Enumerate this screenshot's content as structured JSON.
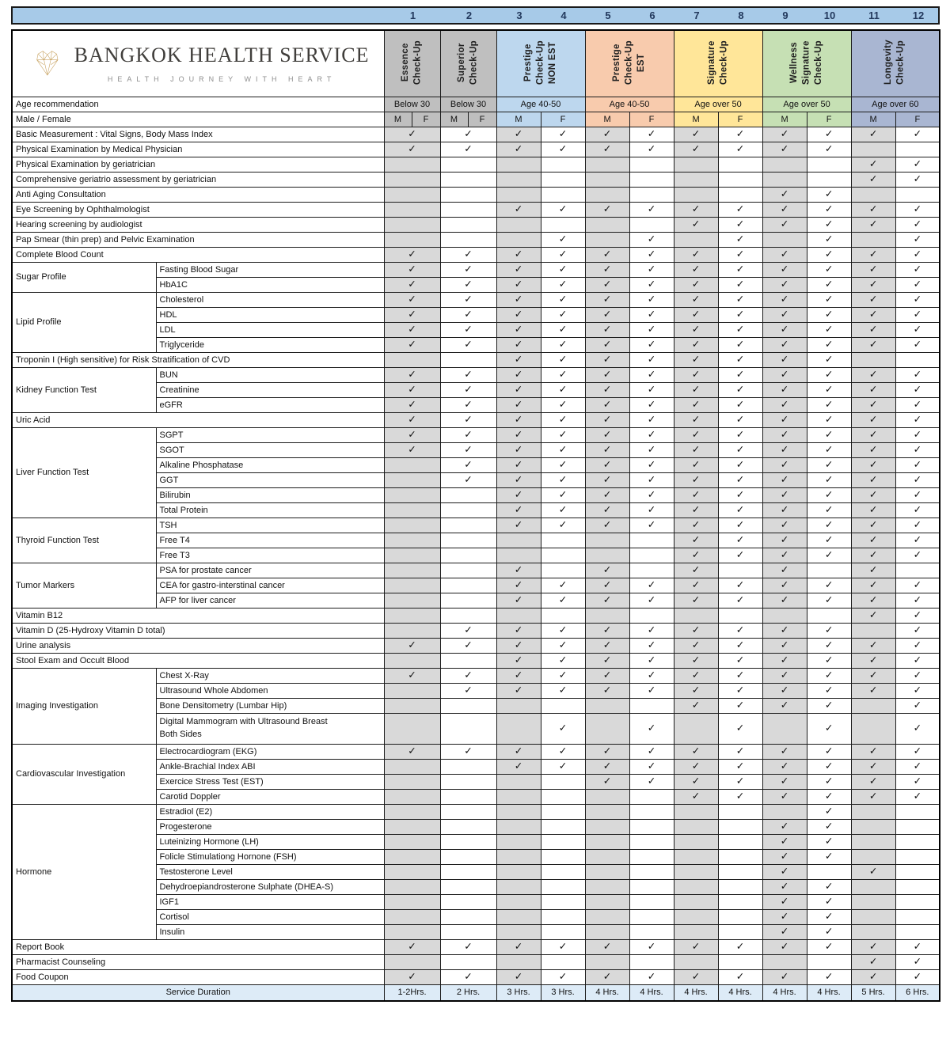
{
  "brand": {
    "name": "BANGKOK HEALTH SERVICE",
    "tagline": "HEALTH JOURNEY WITH HEART"
  },
  "colors": {
    "number_band": "#A7CAE8",
    "cell_gray": "#D9D9D9",
    "footer_bg": "#DDEBF7",
    "package_gray": "#BFBFBF",
    "package_blue": "#BDD7EE",
    "package_peach": "#F8CBAD",
    "package_yellow": "#FFE699",
    "package_green": "#C6E0B4",
    "package_slate": "#A9B6D2"
  },
  "check_glyph": "✓",
  "columns": {
    "numbers": [
      "1",
      "2",
      "3",
      "4",
      "5",
      "6",
      "7",
      "8",
      "9",
      "10",
      "11",
      "12"
    ]
  },
  "packages": [
    {
      "name": "Essence\nCheck-Up",
      "color": "#BFBFBF",
      "age": "Below 30"
    },
    {
      "name": "Superior\nCheck-Up",
      "color": "#BFBFBF",
      "age": "Below 30"
    },
    {
      "name": "Prestige\nCheck-Up\nNON EST",
      "color": "#BDD7EE",
      "age": "Age 40-50"
    },
    {
      "name": "Prestige\nCheck-Up\nEST",
      "color": "#F8CBAD",
      "age": "Age 40-50"
    },
    {
      "name": "Signature\nCheck-Up",
      "color": "#FFE699",
      "age": "Age over 50"
    },
    {
      "name": "Wellness\nSignature\nCheck-Up",
      "color": "#C6E0B4",
      "age": "Age over 50"
    },
    {
      "name": "Longevity\nCheck-Up",
      "color": "#A9B6D2",
      "age": "Age over 60"
    }
  ],
  "row_headers": {
    "age": "Age recommendation",
    "sex": "Male / Female",
    "male": "M",
    "female": "F"
  },
  "rows": [
    {
      "label": "Basic Measurement : Vital Signs, Body Mass Index",
      "c": "111111111111",
      "sep": 1
    },
    {
      "label": "Physical Examination by Medical Physician",
      "c": "111111111100"
    },
    {
      "label": "Physical Examination by geriatrician",
      "c": "000000000011"
    },
    {
      "label": "Comprehensive geriatrio assessment by geriatrician",
      "c": "000000000011"
    },
    {
      "label": "Anti Aging Consultation",
      "c": "000000001100"
    },
    {
      "label": "Eye Screening by Ophthalmologist",
      "c": "001111111111"
    },
    {
      "label": "Hearing screening by audiologist",
      "c": "000000111111"
    },
    {
      "label": "Pap Smear (thin prep) and Pelvic Examination",
      "c": "000101010101"
    },
    {
      "label": "Complete Blood Count",
      "c": "111111111111",
      "sep": 1
    },
    {
      "g": "Sugar Profile",
      "gs": 2,
      "label": "Fasting Blood Sugar",
      "c": "111111111111",
      "sep": 1
    },
    {
      "sub": 1,
      "label": "HbA1C",
      "c": "111111111111"
    },
    {
      "g": "Lipid Profile",
      "gs": 4,
      "label": "Cholesterol",
      "c": "111111111111",
      "sep": 1
    },
    {
      "sub": 1,
      "label": "HDL",
      "c": "111111111111"
    },
    {
      "sub": 1,
      "label": "LDL",
      "c": "111111111111"
    },
    {
      "sub": 1,
      "label": "Triglyceride",
      "c": "111111111111"
    },
    {
      "label": "Troponin I (High sensitive) for Risk Stratification of CVD",
      "c": "001111111100",
      "sep": 1
    },
    {
      "g": "Kidney Function Test",
      "gs": 3,
      "label": "BUN",
      "c": "111111111111",
      "sep": 1
    },
    {
      "sub": 1,
      "label": "Creatinine",
      "c": "111111111111"
    },
    {
      "sub": 1,
      "label": "eGFR",
      "c": "111111111111"
    },
    {
      "label": "Uric Acid",
      "c": "111111111111",
      "sep": 1
    },
    {
      "g": "Liver Function Test",
      "gs": 6,
      "label": "SGPT",
      "c": "111111111111",
      "sep": 1
    },
    {
      "sub": 1,
      "label": "SGOT",
      "c": "111111111111"
    },
    {
      "sub": 1,
      "label": "Alkaline Phosphatase",
      "c": "011111111111"
    },
    {
      "sub": 1,
      "label": "GGT",
      "c": "011111111111"
    },
    {
      "sub": 1,
      "label": "Bilirubin",
      "c": "001111111111"
    },
    {
      "sub": 1,
      "label": "Total Protein",
      "c": "001111111111"
    },
    {
      "g": "Thyroid Function Test",
      "gs": 3,
      "label": "TSH",
      "c": "001111111111",
      "sep": 1
    },
    {
      "sub": 1,
      "label": "Free T4",
      "c": "000000111111"
    },
    {
      "sub": 1,
      "label": "Free T3",
      "c": "000000111111"
    },
    {
      "g": "Tumor Markers",
      "gs": 3,
      "label": "PSA for prostate cancer",
      "c": "001010101010",
      "sep": 1
    },
    {
      "sub": 1,
      "label": "CEA for gastro-interstinal cancer",
      "c": "001111111111"
    },
    {
      "sub": 1,
      "label": "AFP for liver cancer",
      "c": "001111111111"
    },
    {
      "label": "Vitamin B12",
      "c": "000000000011",
      "sep": 1
    },
    {
      "label": "Vitamin D (25-Hydroxy Vitamin D total)",
      "c": "011111111101",
      "sep": 1
    },
    {
      "label": "Urine analysis",
      "c": "111111111111",
      "sep": 1
    },
    {
      "label": "Stool Exam and Occult Blood",
      "c": "001111111111",
      "sep": 1
    },
    {
      "g": "Imaging Investigation",
      "gs": 4,
      "label": "Chest X-Ray",
      "c": "111111111111",
      "sep": 1
    },
    {
      "sub": 1,
      "label": "Ultrasound Whole Abdomen",
      "c": "011111111111"
    },
    {
      "sub": 1,
      "label": "Bone Densitometry (Lumbar Hip)",
      "c": "000000111101"
    },
    {
      "sub": 1,
      "label": "Digital Mammogram with Ultrasound Breast\nBoth Sides",
      "c": "000101010101",
      "tall": 1
    },
    {
      "g": "Cardiovascular Investigation",
      "gs": 4,
      "label": "Electrocardiogram (EKG)",
      "c": "111111111111",
      "sep": 1
    },
    {
      "sub": 1,
      "label": "Ankle-Brachial Index ABI",
      "c": "001111111111"
    },
    {
      "sub": 1,
      "label": "Exercice Stress Test (EST)",
      "c": "000011111111"
    },
    {
      "sub": 1,
      "label": "Carotid Doppler",
      "c": "000000111111"
    },
    {
      "g": "Hormone",
      "gs": 9,
      "label": "Estradiol (E2)",
      "c": "000000000100",
      "sep": 1
    },
    {
      "sub": 1,
      "label": "Progesterone",
      "c": "000000001100"
    },
    {
      "sub": 1,
      "label": "Luteinizing Hormone (LH)",
      "c": "000000001100"
    },
    {
      "sub": 1,
      "label": "Folicle Stimulationg Hornone (FSH)",
      "c": "000000001100"
    },
    {
      "sub": 1,
      "label": "Testosterone Level",
      "c": "000000001010"
    },
    {
      "sub": 1,
      "label": "Dehydroepiandrosterone Sulphate (DHEA-S)",
      "c": "000000001100"
    },
    {
      "sub": 1,
      "label": "IGF1",
      "c": "000000001100"
    },
    {
      "sub": 1,
      "label": "Cortisol",
      "c": "000000001100"
    },
    {
      "sub": 1,
      "label": "Insulin",
      "c": "000000001100"
    },
    {
      "label": "Report Book",
      "c": "111111111111",
      "sep": 1
    },
    {
      "label": "Pharmacist Counseling",
      "c": "000000000011"
    },
    {
      "label": "Food Coupon",
      "c": "111111111111"
    }
  ],
  "footer": {
    "label": "Service Duration",
    "durations": [
      "1-2Hrs.",
      "2 Hrs.",
      "3 Hrs.",
      "3 Hrs.",
      "4 Hrs.",
      "4 Hrs.",
      "4 Hrs.",
      "4 Hrs.",
      "4 Hrs.",
      "4 Hrs.",
      "5 Hrs.",
      "6 Hrs."
    ]
  }
}
